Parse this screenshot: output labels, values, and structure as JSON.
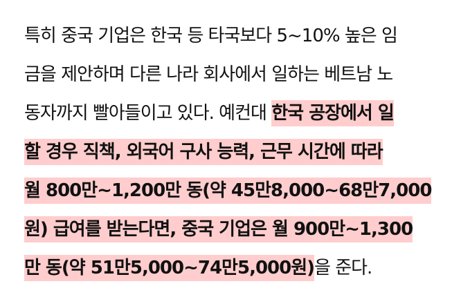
{
  "article": {
    "highlight_color": "#ffcdcd",
    "lines": [
      {
        "plain": "특히 중국 기업은 한국 등 타국보다 5~10% 높은 임",
        "highlight": "",
        "after": ""
      },
      {
        "plain": "금을 제안하며 다른 나라 회사에서 일하는 베트남 노",
        "highlight": "",
        "after": ""
      },
      {
        "plain": "동자까지 빨아들이고 있다. 예컨대 ",
        "highlight": "한국 공장에서 일",
        "after": ""
      },
      {
        "plain": "",
        "highlight": "할 경우 직책, 외국어 구사 능력, 근무 시간에 따라",
        "after": ""
      },
      {
        "plain": "",
        "highlight": "월 800만~1,200만 동(약 45만8,000~68만7,000",
        "after": ""
      },
      {
        "plain": "",
        "highlight": "원) 급여를 받는다면, 중국 기업은 월 900만~1,300",
        "after": ""
      },
      {
        "plain": "",
        "highlight": "만 동(약 51만5,000~74만5,000원)",
        "after": "을 준다."
      }
    ]
  }
}
